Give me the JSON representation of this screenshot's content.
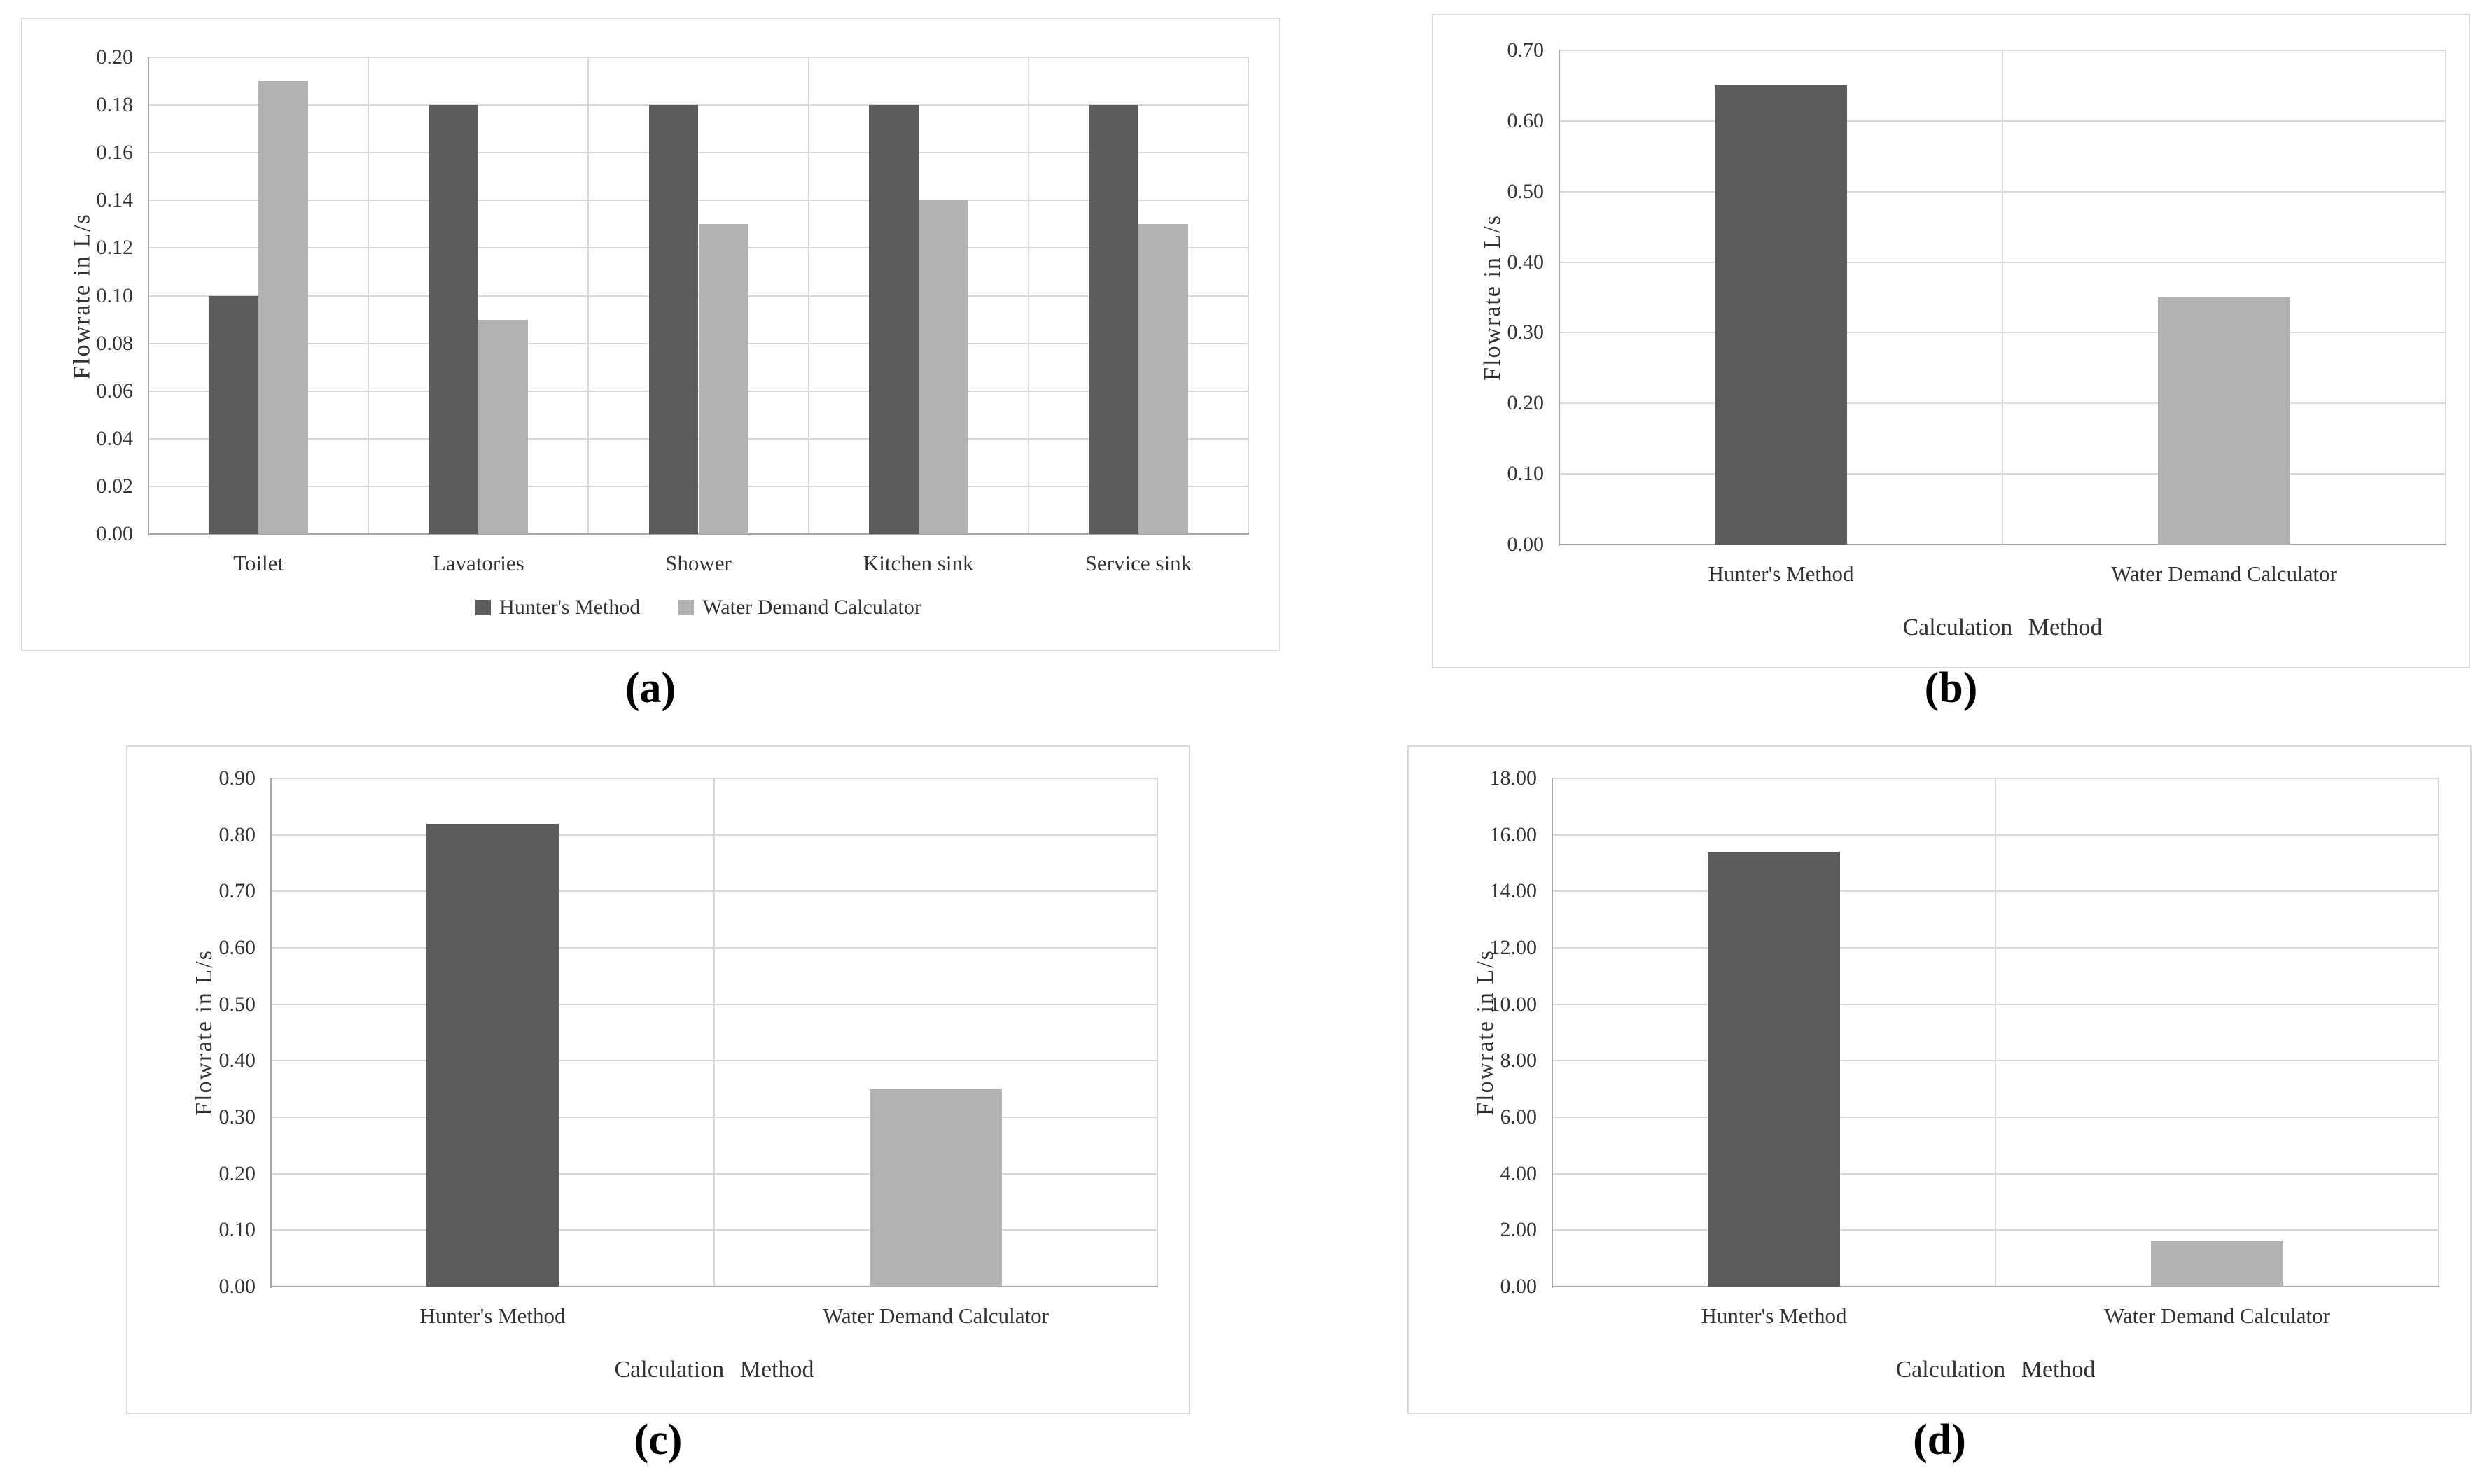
{
  "figure": {
    "captions": {
      "a": "(a)",
      "b": "(b)",
      "c": "(c)",
      "d": "(d)"
    }
  },
  "colors": {
    "hunters_method_bar": "#5c5c5c",
    "water_demand_calculator_bar": "#b2b2b2",
    "gridline": "#d9d9d9",
    "axis_line": "#a6a6a6",
    "panel_border": "#d9d9d9",
    "text": "#333333"
  },
  "chart_data": [
    {
      "type": "bar",
      "panel": "a",
      "title": "",
      "ylabel": "Flowrate in L/s",
      "xlabel": "",
      "ylim": [
        0,
        0.2
      ],
      "ytick_step": 0.02,
      "ytick_decimals": 2,
      "grid": true,
      "legend_position": "bottom",
      "categories": [
        "Toilet",
        "Lavatories",
        "Shower",
        "Kitchen sink",
        "Service sink"
      ],
      "series": [
        {
          "name": "Hunter's Method",
          "color": "#5c5c5c",
          "values": [
            0.1,
            0.18,
            0.18,
            0.18,
            0.18
          ]
        },
        {
          "name": "Water Demand Calculator",
          "color": "#b2b2b2",
          "values": [
            0.19,
            0.09,
            0.13,
            0.14,
            0.13
          ]
        }
      ]
    },
    {
      "type": "bar",
      "panel": "b",
      "title": "",
      "ylabel": "Flowrate in L/s",
      "xlabel": "Calculation Method",
      "ylim": [
        0,
        0.7
      ],
      "ytick_step": 0.1,
      "ytick_decimals": 2,
      "grid": true,
      "legend_position": "none",
      "categories": [
        "Hunter's Method",
        "Water Demand Calculator"
      ],
      "values": [
        0.65,
        0.35
      ],
      "bar_colors": [
        "#5c5c5c",
        "#b2b2b2"
      ]
    },
    {
      "type": "bar",
      "panel": "c",
      "title": "",
      "ylabel": "Flowrate in L/s",
      "xlabel": "Calculation Method",
      "ylim": [
        0,
        0.9
      ],
      "ytick_step": 0.1,
      "ytick_decimals": 2,
      "grid": true,
      "legend_position": "none",
      "categories": [
        "Hunter's Method",
        "Water Demand Calculator"
      ],
      "values": [
        0.82,
        0.35
      ],
      "bar_colors": [
        "#5c5c5c",
        "#b2b2b2"
      ]
    },
    {
      "type": "bar",
      "panel": "d",
      "title": "",
      "ylabel": "Flowrate in L/s",
      "xlabel": "Calculation Method",
      "ylim": [
        0,
        18.0
      ],
      "ytick_step": 2.0,
      "ytick_decimals": 2,
      "grid": true,
      "legend_position": "none",
      "categories": [
        "Hunter's Method",
        "Water Demand Calculator"
      ],
      "values": [
        15.4,
        1.6
      ],
      "bar_colors": [
        "#5c5c5c",
        "#b2b2b2"
      ]
    }
  ]
}
